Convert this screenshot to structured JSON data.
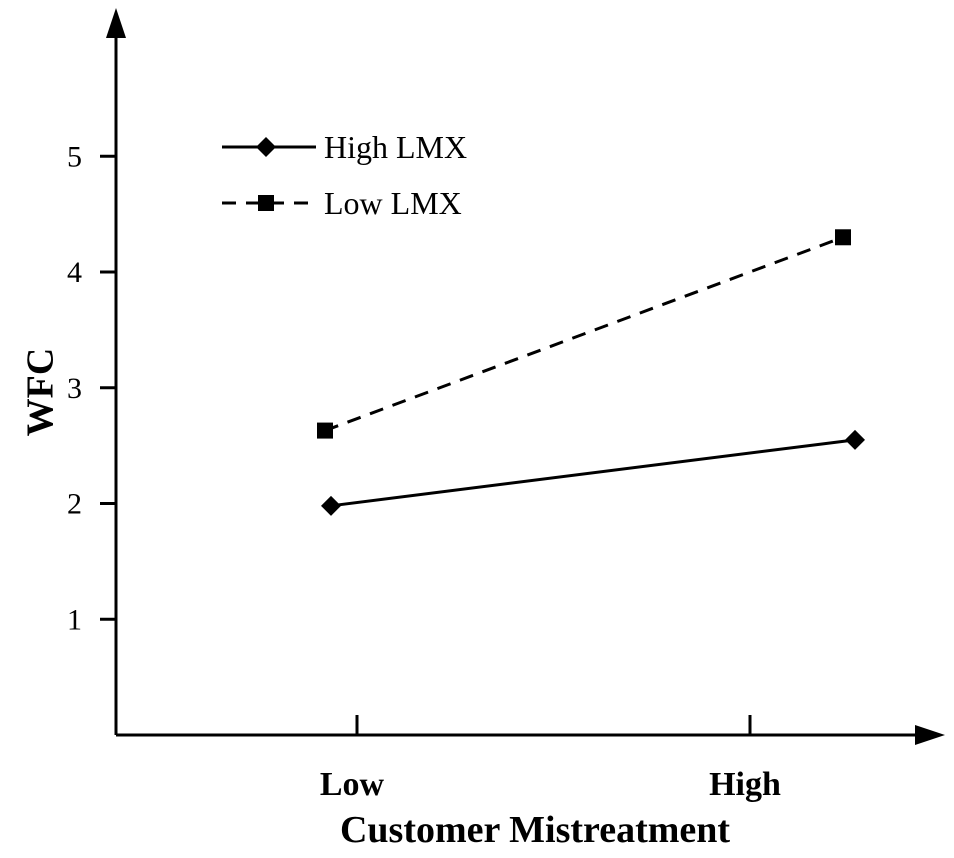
{
  "chart_data": {
    "type": "line",
    "categories": [
      "Low",
      "High"
    ],
    "series": [
      {
        "name": "High LMX",
        "values": [
          1.98,
          2.55
        ],
        "line_style": "solid",
        "marker": "diamond",
        "color": "#000000"
      },
      {
        "name": "Low LMX",
        "values": [
          2.63,
          4.3
        ],
        "line_style": "dashed",
        "marker": "square",
        "color": "#000000"
      }
    ],
    "title": "",
    "xlabel": "Customer Mistreatment",
    "ylabel": "WFC",
    "ylim": [
      0,
      6
    ],
    "yticks": [
      "1",
      "2",
      "3",
      "4",
      "5"
    ],
    "grid": false,
    "legend_position": "top-left"
  }
}
